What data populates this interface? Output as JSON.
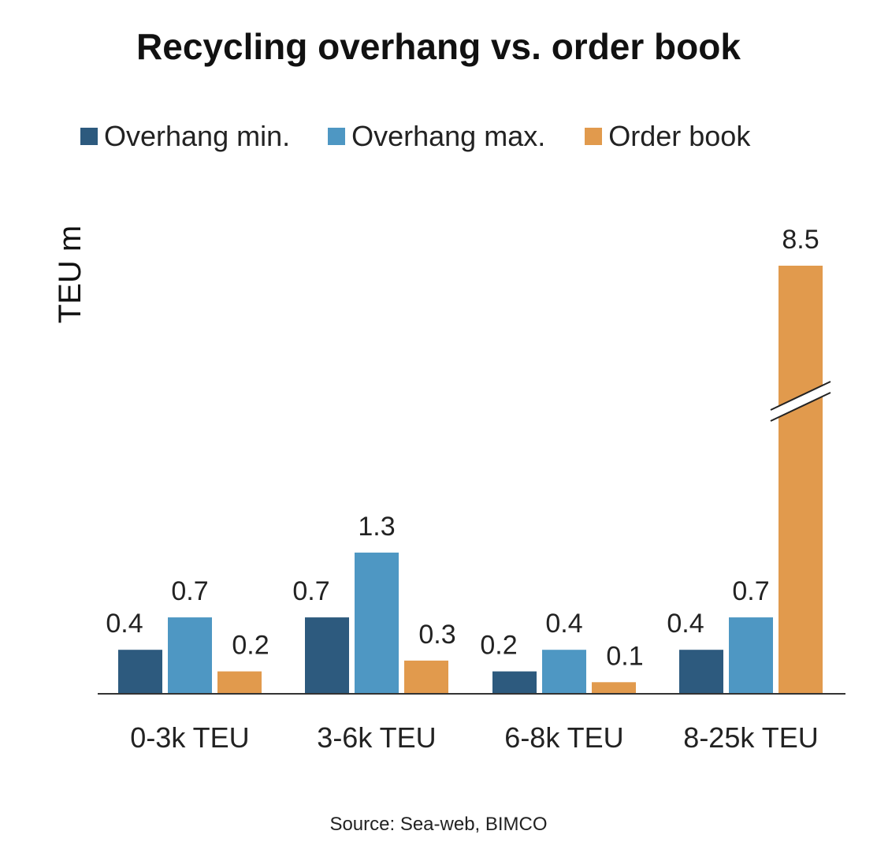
{
  "chart_data": {
    "type": "bar",
    "title": "Recycling overhang vs. order book",
    "ylabel": "TEU m",
    "xlabel": "",
    "categories": [
      "0-3k TEU",
      "3-6k TEU",
      "6-8k TEU",
      "8-25k TEU"
    ],
    "series": [
      {
        "name": "Overhang min.",
        "color": "#2d5a7e",
        "values": [
          0.4,
          0.7,
          0.2,
          0.4
        ],
        "labels": [
          "0.4",
          "0.7",
          "0.2",
          "0.4"
        ]
      },
      {
        "name": "Overhang max.",
        "color": "#4e97c3",
        "values": [
          0.7,
          1.3,
          0.4,
          0.7
        ],
        "labels": [
          "0.7",
          "1.3",
          "0.4",
          "0.7"
        ]
      },
      {
        "name": "Order book",
        "color": "#e19a4d",
        "values": [
          0.2,
          0.3,
          0.1,
          8.5
        ],
        "labels": [
          "0.2",
          "0.3",
          "0.1",
          "8.5"
        ]
      }
    ],
    "axis_break": {
      "category": "8-25k TEU",
      "series": "Order book"
    },
    "ylim": [
      0,
      1.4
    ],
    "grid": false,
    "legend": "top",
    "source": "Source: Sea-web, BIMCO"
  }
}
